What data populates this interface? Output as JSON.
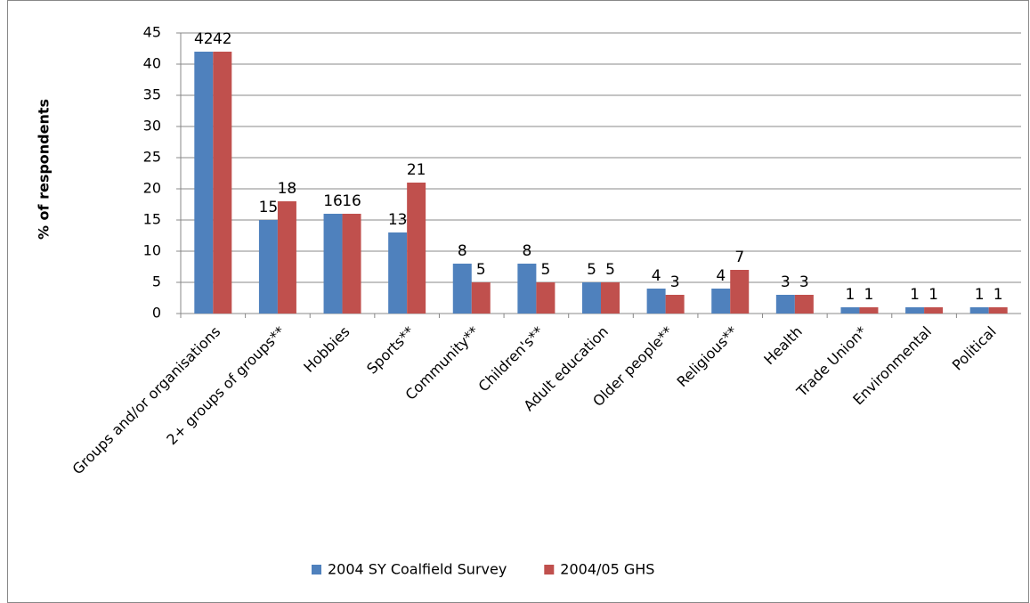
{
  "chart_data": {
    "type": "bar",
    "y_label": "% of respondents",
    "categories": [
      "Groups and/or organisations",
      "2+ groups of groups**",
      "Hobbies",
      "Sports**",
      "Community**",
      "Children's**",
      "Adult education",
      "Older people**",
      "Religious**",
      "Health",
      "Trade Union*",
      "Environmental",
      "Political"
    ],
    "series": [
      {
        "name": "2004 SY Coalfield Survey",
        "color": "#4f81bd",
        "values": [
          42,
          15,
          16,
          13,
          8,
          8,
          5,
          4,
          4,
          3,
          1,
          1,
          1
        ]
      },
      {
        "name": "2004/05 GHS",
        "color": "#c0504d",
        "values": [
          42,
          18,
          16,
          21,
          5,
          5,
          5,
          3,
          7,
          3,
          1,
          1,
          1
        ]
      }
    ],
    "ylim": [
      0,
      45
    ],
    "yticks": [
      0,
      5,
      10,
      15,
      20,
      25,
      30,
      35,
      40,
      45
    ],
    "grid": true,
    "legend": "bottom"
  }
}
